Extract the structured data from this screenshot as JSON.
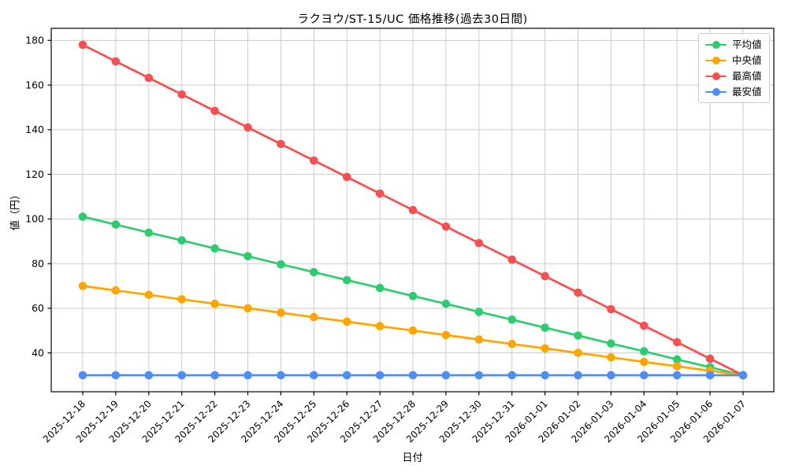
{
  "chart_data": {
    "type": "line",
    "title": "ラクヨウ/ST-15/UC 価格推移(過去30日間)",
    "xlabel": "日付",
    "ylabel": "値（円）",
    "x": [
      "2025-12-18",
      "2025-12-19",
      "2025-12-20",
      "2025-12-21",
      "2025-12-22",
      "2025-12-23",
      "2025-12-24",
      "2025-12-25",
      "2025-12-26",
      "2025-12-27",
      "2025-12-28",
      "2025-12-29",
      "2025-12-30",
      "2025-12-31",
      "2026-01-01",
      "2026-01-02",
      "2026-01-03",
      "2026-01-04",
      "2026-01-05",
      "2026-01-06",
      "2026-01-07"
    ],
    "y_ticks": [
      40,
      60,
      80,
      100,
      120,
      140,
      160,
      180
    ],
    "ylim": [
      22.6,
      185.4
    ],
    "grid": true,
    "grid_color": "#cccccc",
    "legend_position": "upper right",
    "series": [
      {
        "key": "avg",
        "name": "平均値",
        "color": "#2ecc71",
        "values": [
          101.0,
          97.5,
          93.9,
          90.4,
          86.8,
          83.3,
          79.7,
          76.2,
          72.6,
          69.1,
          65.5,
          62.0,
          58.4,
          54.9,
          51.3,
          47.8,
          44.2,
          40.7,
          37.1,
          33.6,
          30.0
        ]
      },
      {
        "key": "median",
        "name": "中央値",
        "color": "#ffa500",
        "values": [
          70.0,
          68.0,
          66.0,
          64.0,
          62.0,
          60.0,
          58.0,
          56.0,
          54.0,
          52.0,
          50.0,
          48.0,
          46.0,
          44.0,
          42.0,
          40.0,
          38.0,
          36.0,
          34.0,
          32.0,
          30.0
        ]
      },
      {
        "key": "max",
        "name": "最高値",
        "color": "#f85050",
        "values": [
          178.0,
          170.6,
          163.2,
          155.8,
          148.4,
          141.0,
          133.6,
          126.2,
          118.8,
          111.4,
          104.0,
          96.6,
          89.2,
          81.8,
          74.4,
          67.0,
          59.6,
          52.2,
          44.8,
          37.4,
          30.0
        ]
      },
      {
        "key": "min",
        "name": "最安値",
        "color": "#4d8ef5",
        "values": [
          30.0,
          30.0,
          30.0,
          30.0,
          30.0,
          30.0,
          30.0,
          30.0,
          30.0,
          30.0,
          30.0,
          30.0,
          30.0,
          30.0,
          30.0,
          30.0,
          30.0,
          30.0,
          30.0,
          30.0,
          30.0
        ]
      }
    ]
  }
}
